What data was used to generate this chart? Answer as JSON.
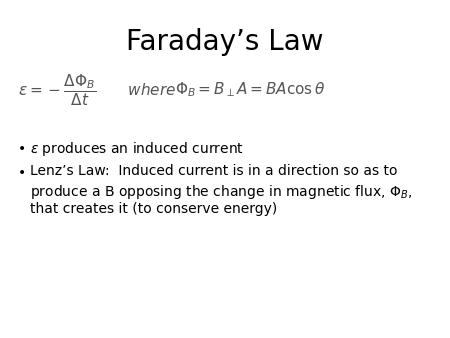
{
  "title": "Faraday’s Law",
  "title_fontsize": 20,
  "bg_color": "#ffffff",
  "text_color": "#000000",
  "formula_color": "#555555",
  "formula": "$\\varepsilon = -\\dfrac{\\Delta\\Phi_B}{\\Delta t}$",
  "where_text": "  where   ",
  "flux_formula": "$\\Phi_B = B_{\\perp}A = BA\\cos\\theta$",
  "bullet1_pre": "$\\varepsilon$",
  "bullet1_post": " produces an induced current",
  "bullet2_line1": "Lenz’s Law:  Induced current is in a direction so as to",
  "bullet2_line2": "produce a B opposing the change in magnetic flux, $\\Phi_B$,",
  "bullet2_line3": "that creates it (to conserve energy)"
}
